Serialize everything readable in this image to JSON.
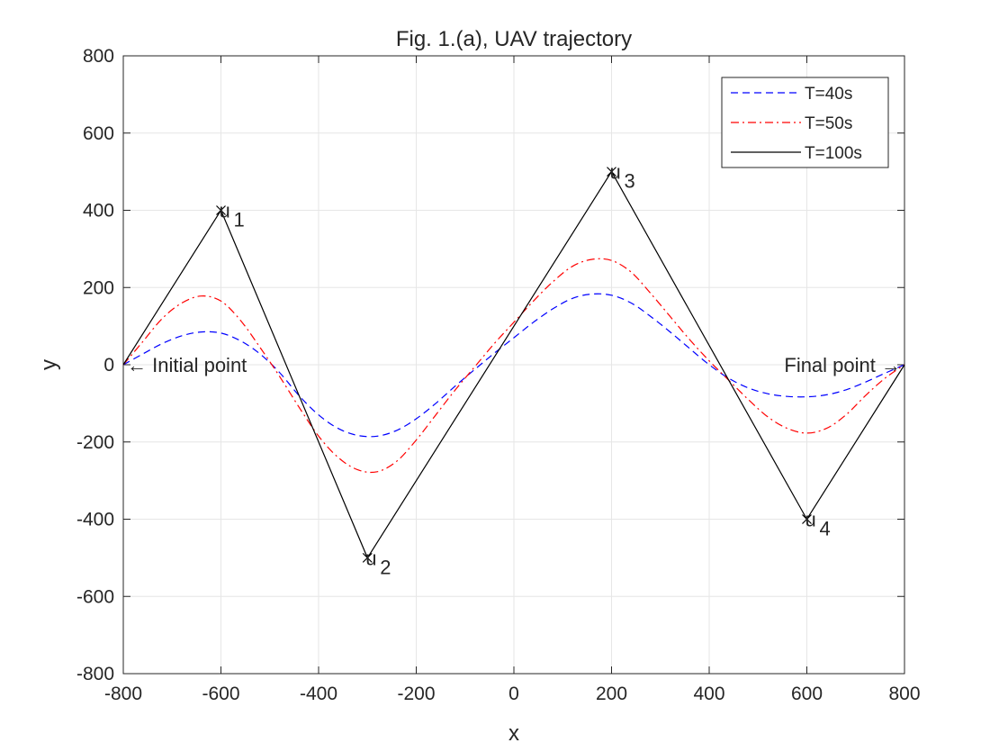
{
  "chart_data": {
    "type": "line",
    "title": "Fig. 1.(a), UAV trajectory",
    "xlabel": "x",
    "ylabel": "y",
    "xlim": [
      -800,
      800
    ],
    "ylim": [
      -800,
      800
    ],
    "xticks": [
      -800,
      -600,
      -400,
      -200,
      0,
      200,
      400,
      600,
      800
    ],
    "yticks": [
      -800,
      -600,
      -400,
      -200,
      0,
      200,
      400,
      600,
      800
    ],
    "xtick_labels": [
      "-800",
      "-600",
      "-400",
      "-200",
      "0",
      "200",
      "400",
      "600",
      "800"
    ],
    "ytick_labels": [
      "-800",
      "-600",
      "-400",
      "-200",
      "0",
      "200",
      "400",
      "600",
      "800"
    ],
    "grid": true,
    "legend_position": "top-right",
    "series": [
      {
        "name": "T=40s",
        "color": "#0000ff",
        "style": "dashed",
        "x": [
          -800,
          -760,
          -720,
          -680,
          -640,
          -600,
          -560,
          -520,
          -480,
          -440,
          -400,
          -360,
          -320,
          -280,
          -240,
          -200,
          -160,
          -120,
          -80,
          -40,
          0,
          40,
          80,
          120,
          160,
          200,
          240,
          280,
          320,
          360,
          400,
          440,
          480,
          520,
          560,
          600,
          640,
          680,
          720,
          760,
          800
        ],
        "y": [
          0,
          28,
          55,
          75,
          85,
          82,
          62,
          28,
          -20,
          -80,
          -130,
          -165,
          -183,
          -185,
          -170,
          -140,
          -100,
          -55,
          -12,
          30,
          70,
          110,
          145,
          172,
          183,
          180,
          160,
          125,
          85,
          42,
          0,
          -35,
          -60,
          -75,
          -82,
          -83,
          -78,
          -65,
          -45,
          -22,
          0
        ]
      },
      {
        "name": "T=50s",
        "color": "#ff0000",
        "style": "dashdot",
        "x": [
          -800,
          -760,
          -720,
          -680,
          -640,
          -600,
          -560,
          -520,
          -480,
          -440,
          -400,
          -360,
          -320,
          -280,
          -240,
          -200,
          -160,
          -120,
          -80,
          -40,
          0,
          40,
          80,
          120,
          160,
          200,
          240,
          280,
          320,
          360,
          400,
          440,
          480,
          520,
          560,
          600,
          640,
          680,
          720,
          760,
          800
        ],
        "y": [
          0,
          60,
          120,
          160,
          178,
          165,
          115,
          45,
          -30,
          -110,
          -185,
          -240,
          -272,
          -277,
          -250,
          -195,
          -130,
          -65,
          -5,
          55,
          110,
          165,
          215,
          255,
          273,
          270,
          240,
          185,
          125,
          65,
          10,
          -40,
          -90,
          -135,
          -165,
          -177,
          -165,
          -130,
          -80,
          -35,
          0
        ]
      },
      {
        "name": "T=100s",
        "color": "#000000",
        "style": "solid",
        "x": [
          -800,
          -600,
          -300,
          200,
          600,
          800
        ],
        "y": [
          0,
          400,
          -500,
          500,
          -400,
          0
        ]
      }
    ],
    "annotations": [
      {
        "label": "u",
        "sub": "1",
        "x": -600,
        "y": 400
      },
      {
        "label": "u",
        "sub": "2",
        "x": -300,
        "y": -500
      },
      {
        "label": "u",
        "sub": "3",
        "x": 200,
        "y": 500
      },
      {
        "label": "u",
        "sub": "4",
        "x": 600,
        "y": -400
      },
      {
        "text": "← Initial point",
        "x": -800,
        "y": 0
      },
      {
        "text": "Final point →",
        "x": 800,
        "y": 0
      }
    ]
  }
}
